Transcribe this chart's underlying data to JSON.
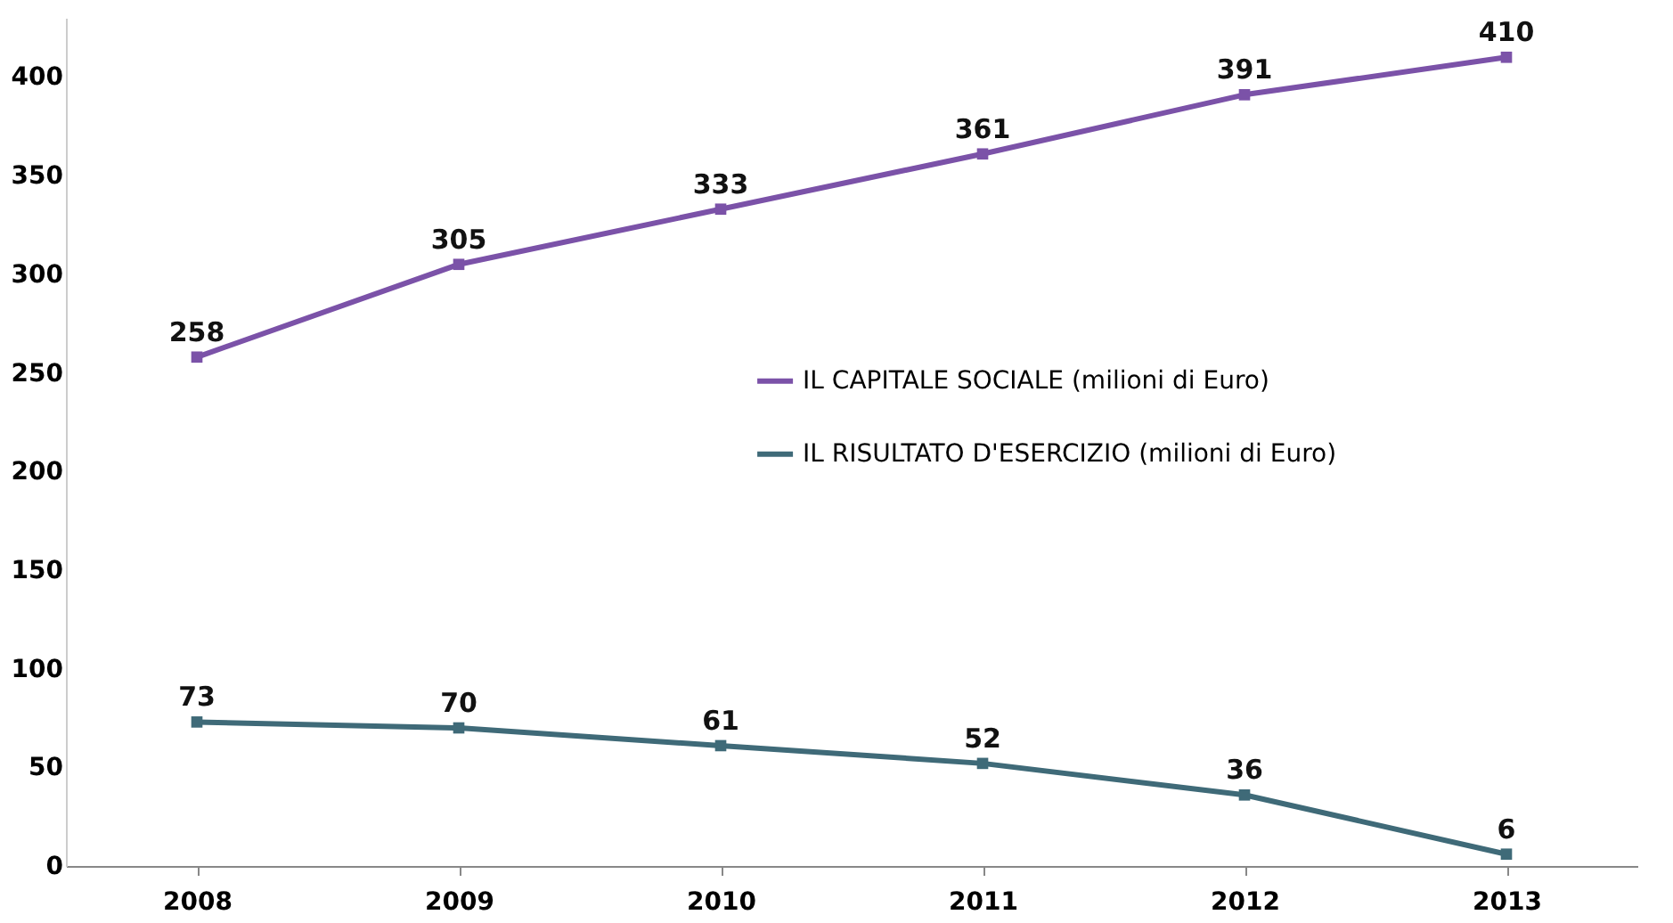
{
  "chart_data": {
    "type": "line",
    "categories": [
      "2008",
      "2009",
      "2010",
      "2011",
      "2012",
      "2013"
    ],
    "series": [
      {
        "name": "IL CAPITALE SOCIALE (milioni di Euro)",
        "color": "#7b52a8",
        "values": [
          258,
          305,
          333,
          361,
          391,
          410
        ]
      },
      {
        "name": "IL RISULTATO D'ESERCIZIO (milioni di Euro)",
        "color": "#3f6a78",
        "values": [
          73,
          70,
          61,
          52,
          36,
          6
        ]
      }
    ],
    "ylim": [
      0,
      430
    ],
    "yticks": [
      0,
      50,
      100,
      150,
      200,
      250,
      300,
      350,
      400
    ],
    "grid": false,
    "legend": "right",
    "marker": "square",
    "line_style": "solid",
    "data_labels": true
  }
}
